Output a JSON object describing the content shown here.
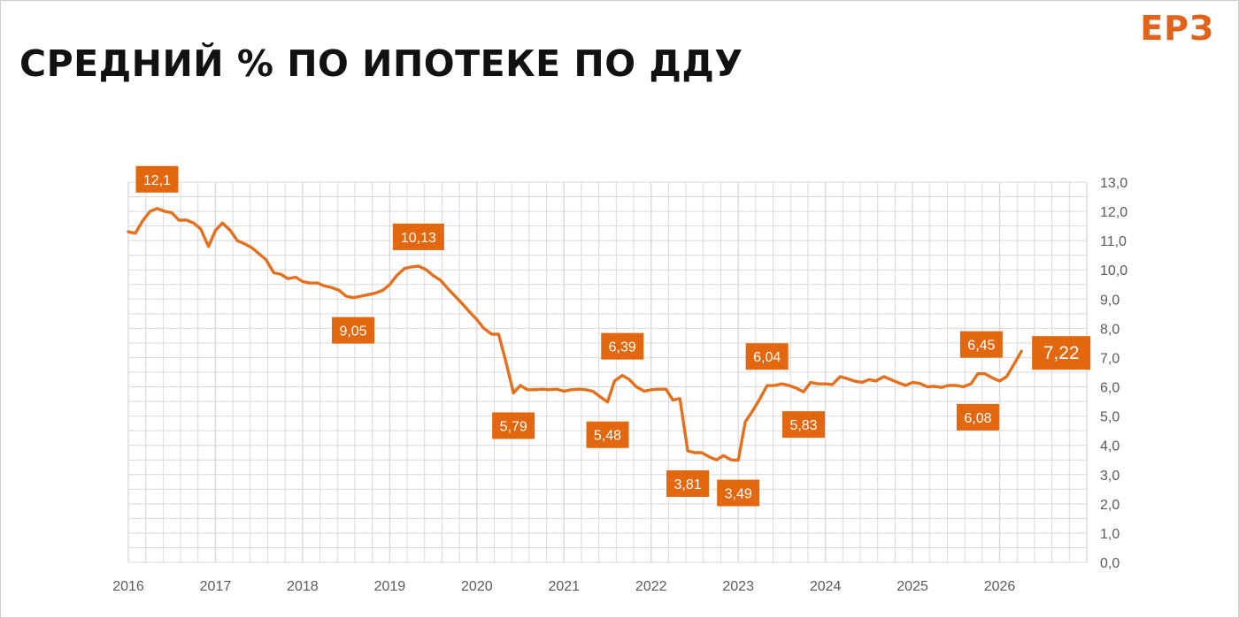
{
  "header": {
    "title": "СРЕДНИЙ % ПО ИПОТЕКЕ ПО ДДУ",
    "logo": "ЕРЗ"
  },
  "colors": {
    "series": "#e4701e",
    "label_bg": "#e2670f",
    "grid": "#d9d9d9"
  },
  "chart_data": {
    "type": "line",
    "title": "СРЕДНИЙ % ПО ИПОТЕКЕ ПО ДДУ",
    "xlabel": "",
    "ylabel": "",
    "xlim": [
      2016,
      2027
    ],
    "ylim": [
      0,
      13
    ],
    "y_ticks": [
      "0,0",
      "1,0",
      "2,0",
      "3,0",
      "4,0",
      "5,0",
      "6,0",
      "7,0",
      "8,0",
      "9,0",
      "10,0",
      "11,0",
      "12,0",
      "13,0"
    ],
    "x_ticks": [
      "2016",
      "2017",
      "2018",
      "2019",
      "2020",
      "2021",
      "2022",
      "2023",
      "2024",
      "2025",
      "2026"
    ],
    "grid": true,
    "y_axis_position": "right",
    "series": [
      {
        "name": "",
        "points": [
          [
            2016.0,
            11.3
          ],
          [
            2016.08,
            11.25
          ],
          [
            2016.17,
            11.7
          ],
          [
            2016.25,
            12.0
          ],
          [
            2016.33,
            12.1
          ],
          [
            2016.42,
            12.0
          ],
          [
            2016.5,
            11.95
          ],
          [
            2016.58,
            11.7
          ],
          [
            2016.67,
            11.7
          ],
          [
            2016.75,
            11.6
          ],
          [
            2016.83,
            11.4
          ],
          [
            2016.92,
            10.8
          ],
          [
            2017.0,
            11.35
          ],
          [
            2017.08,
            11.6
          ],
          [
            2017.17,
            11.35
          ],
          [
            2017.25,
            11.0
          ],
          [
            2017.33,
            10.9
          ],
          [
            2017.42,
            10.75
          ],
          [
            2017.5,
            10.55
          ],
          [
            2017.58,
            10.35
          ],
          [
            2017.67,
            9.9
          ],
          [
            2017.75,
            9.85
          ],
          [
            2017.83,
            9.7
          ],
          [
            2017.92,
            9.75
          ],
          [
            2018.0,
            9.6
          ],
          [
            2018.08,
            9.55
          ],
          [
            2018.17,
            9.55
          ],
          [
            2018.25,
            9.45
          ],
          [
            2018.33,
            9.4
          ],
          [
            2018.42,
            9.3
          ],
          [
            2018.5,
            9.1
          ],
          [
            2018.58,
            9.05
          ],
          [
            2018.67,
            9.1
          ],
          [
            2018.75,
            9.15
          ],
          [
            2018.83,
            9.2
          ],
          [
            2018.92,
            9.3
          ],
          [
            2019.0,
            9.5
          ],
          [
            2019.08,
            9.8
          ],
          [
            2019.17,
            10.05
          ],
          [
            2019.25,
            10.1
          ],
          [
            2019.33,
            10.13
          ],
          [
            2019.42,
            10.0
          ],
          [
            2019.5,
            9.8
          ],
          [
            2019.58,
            9.65
          ],
          [
            2019.67,
            9.35
          ],
          [
            2019.75,
            9.1
          ],
          [
            2019.83,
            8.85
          ],
          [
            2019.92,
            8.55
          ],
          [
            2020.0,
            8.3
          ],
          [
            2020.08,
            8.0
          ],
          [
            2020.17,
            7.8
          ],
          [
            2020.25,
            7.8
          ],
          [
            2020.33,
            6.9
          ],
          [
            2020.42,
            5.79
          ],
          [
            2020.5,
            6.05
          ],
          [
            2020.58,
            5.9
          ],
          [
            2020.67,
            5.9
          ],
          [
            2020.75,
            5.92
          ],
          [
            2020.83,
            5.9
          ],
          [
            2020.92,
            5.92
          ],
          [
            2021.0,
            5.85
          ],
          [
            2021.08,
            5.9
          ],
          [
            2021.17,
            5.92
          ],
          [
            2021.25,
            5.9
          ],
          [
            2021.33,
            5.85
          ],
          [
            2021.42,
            5.65
          ],
          [
            2021.5,
            5.48
          ],
          [
            2021.58,
            6.2
          ],
          [
            2021.67,
            6.39
          ],
          [
            2021.75,
            6.25
          ],
          [
            2021.83,
            6.0
          ],
          [
            2021.92,
            5.85
          ],
          [
            2022.0,
            5.9
          ],
          [
            2022.08,
            5.92
          ],
          [
            2022.17,
            5.92
          ],
          [
            2022.25,
            5.55
          ],
          [
            2022.33,
            5.6
          ],
          [
            2022.42,
            3.81
          ],
          [
            2022.5,
            3.75
          ],
          [
            2022.58,
            3.75
          ],
          [
            2022.67,
            3.6
          ],
          [
            2022.75,
            3.5
          ],
          [
            2022.83,
            3.65
          ],
          [
            2022.92,
            3.5
          ],
          [
            2023.0,
            3.49
          ],
          [
            2023.08,
            4.8
          ],
          [
            2023.17,
            5.2
          ],
          [
            2023.25,
            5.6
          ],
          [
            2023.33,
            6.04
          ],
          [
            2023.42,
            6.05
          ],
          [
            2023.5,
            6.1
          ],
          [
            2023.58,
            6.05
          ],
          [
            2023.67,
            5.95
          ],
          [
            2023.75,
            5.83
          ],
          [
            2023.83,
            6.15
          ],
          [
            2023.92,
            6.1
          ],
          [
            2024.0,
            6.1
          ],
          [
            2024.08,
            6.08
          ],
          [
            2024.17,
            6.35
          ],
          [
            2024.25,
            6.28
          ],
          [
            2024.33,
            6.2
          ],
          [
            2024.42,
            6.15
          ],
          [
            2024.5,
            6.25
          ],
          [
            2024.58,
            6.2
          ],
          [
            2024.67,
            6.35
          ],
          [
            2024.75,
            6.25
          ],
          [
            2024.83,
            6.15
          ],
          [
            2024.92,
            6.05
          ],
          [
            2025.0,
            6.15
          ],
          [
            2025.08,
            6.12
          ],
          [
            2025.17,
            6.0
          ],
          [
            2025.25,
            6.02
          ],
          [
            2025.33,
            5.98
          ],
          [
            2025.42,
            6.05
          ],
          [
            2025.5,
            6.05
          ],
          [
            2025.58,
            6.0
          ],
          [
            2025.67,
            6.1
          ],
          [
            2025.75,
            6.45
          ],
          [
            2025.83,
            6.45
          ],
          [
            2025.92,
            6.3
          ],
          [
            2026.0,
            6.2
          ],
          [
            2026.08,
            6.35
          ],
          [
            2026.17,
            6.8
          ],
          [
            2026.25,
            7.22
          ]
        ]
      }
    ],
    "annotations": [
      {
        "text": "12,1",
        "x": 2016.33,
        "y": 12.1,
        "placement": "above"
      },
      {
        "text": "10,13",
        "x": 2019.33,
        "y": 10.13,
        "placement": "above"
      },
      {
        "text": "9,05",
        "x": 2018.58,
        "y": 9.05,
        "placement": "below"
      },
      {
        "text": "5,79",
        "x": 2020.42,
        "y": 5.79,
        "placement": "below"
      },
      {
        "text": "6,39",
        "x": 2021.67,
        "y": 6.39,
        "placement": "above"
      },
      {
        "text": "5,48",
        "x": 2021.5,
        "y": 5.48,
        "placement": "below"
      },
      {
        "text": "3,81",
        "x": 2022.42,
        "y": 3.81,
        "placement": "below"
      },
      {
        "text": "3,49",
        "x": 2023.0,
        "y": 3.49,
        "placement": "below"
      },
      {
        "text": "6,04",
        "x": 2023.33,
        "y": 6.04,
        "placement": "above"
      },
      {
        "text": "5,83",
        "x": 2023.75,
        "y": 5.83,
        "placement": "below"
      },
      {
        "text": "6,45",
        "x": 2025.79,
        "y": 6.45,
        "placement": "above"
      },
      {
        "text": "6,08",
        "x": 2025.75,
        "y": 6.08,
        "placement": "below"
      },
      {
        "text": "7,22",
        "x": 2026.25,
        "y": 7.22,
        "placement": "right",
        "emphasis": true
      }
    ]
  }
}
